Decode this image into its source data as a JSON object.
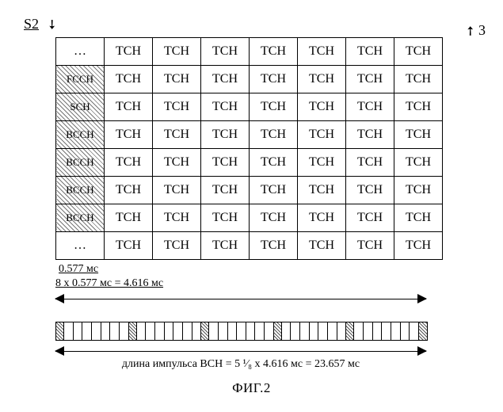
{
  "labels": {
    "s2": "S2",
    "callout": "3",
    "fig": "ФИГ.2"
  },
  "table": {
    "cols": 8,
    "col0": [
      "…",
      "FCCH",
      "SCH",
      "BCCH",
      "BCCH",
      "BCCH",
      "BCCH",
      "…"
    ],
    "col0_hatched": [
      false,
      true,
      true,
      true,
      true,
      true,
      true,
      false
    ],
    "cell_rest": "TCH"
  },
  "dims": {
    "slot": "0.577 мс",
    "frame_eq": "8 x 0.577 мс  = 4.616 мс",
    "bch_eq": "длина импульса BCH = 5 ¹⁄₈ x 4.616 мс  = 23.657 мс"
  },
  "narrow": {
    "cells": 41,
    "hatched_idx": [
      0,
      8,
      16,
      24,
      32,
      40
    ]
  },
  "style": {
    "hatched_bg": "repeating-linear-gradient(45deg, #777 0 1px, #fff 1px 4px)"
  }
}
